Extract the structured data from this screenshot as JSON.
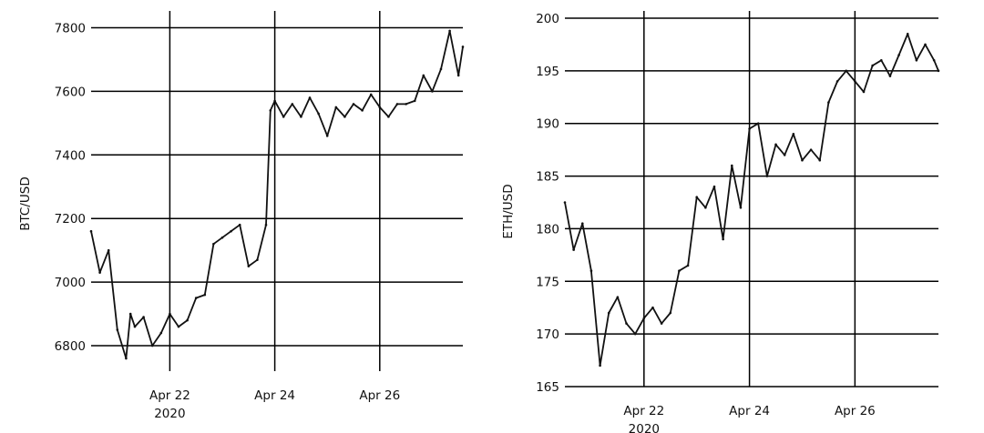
{
  "chart_data": [
    {
      "type": "line",
      "title": "",
      "xlabel": "",
      "ylabel": "BTC/USD",
      "x_ticks": [
        "Apr 22",
        "Apr 24",
        "Apr 26"
      ],
      "x_year_label": "2020",
      "xlim": [
        "2020-04-20T12:00",
        "2020-04-27T14:00"
      ],
      "ylim": [
        6720,
        7830
      ],
      "y_ticks": [
        6800,
        7000,
        7200,
        7400,
        7600,
        7800
      ],
      "grid": true,
      "series": [
        {
          "x": [
            "2020-04-20T12:00",
            "2020-04-20T16:00",
            "2020-04-20T20:00",
            "2020-04-21T00:00",
            "2020-04-21T04:00",
            "2020-04-21T06:00",
            "2020-04-21T08:00",
            "2020-04-21T12:00",
            "2020-04-21T16:00",
            "2020-04-21T20:00",
            "2020-04-22T00:00",
            "2020-04-22T04:00",
            "2020-04-22T08:00",
            "2020-04-22T12:00",
            "2020-04-22T16:00",
            "2020-04-22T20:00",
            "2020-04-23T00:00",
            "2020-04-23T04:00",
            "2020-04-23T08:00",
            "2020-04-23T12:00",
            "2020-04-23T16:00",
            "2020-04-23T20:00",
            "2020-04-23T22:00",
            "2020-04-24T00:00",
            "2020-04-24T04:00",
            "2020-04-24T08:00",
            "2020-04-24T12:00",
            "2020-04-24T16:00",
            "2020-04-24T20:00",
            "2020-04-25T00:00",
            "2020-04-25T04:00",
            "2020-04-25T08:00",
            "2020-04-25T12:00",
            "2020-04-25T16:00",
            "2020-04-25T20:00",
            "2020-04-26T00:00",
            "2020-04-26T04:00",
            "2020-04-26T08:00",
            "2020-04-26T12:00",
            "2020-04-26T16:00",
            "2020-04-26T20:00",
            "2020-04-27T00:00",
            "2020-04-27T04:00",
            "2020-04-27T08:00",
            "2020-04-27T12:00",
            "2020-04-27T14:00"
          ],
          "values": [
            7160,
            7030,
            7100,
            6850,
            6760,
            6900,
            6860,
            6890,
            6800,
            6840,
            6900,
            6860,
            6880,
            6950,
            6960,
            7120,
            7140,
            7160,
            7180,
            7050,
            7070,
            7180,
            7540,
            7570,
            7520,
            7560,
            7520,
            7580,
            7530,
            7460,
            7550,
            7520,
            7560,
            7540,
            7590,
            7550,
            7520,
            7560,
            7560,
            7570,
            7650,
            7600,
            7670,
            7790,
            7650,
            7740
          ]
        }
      ]
    },
    {
      "type": "line",
      "title": "",
      "xlabel": "",
      "ylabel": "ETH/USD",
      "x_ticks": [
        "Apr 22",
        "Apr 24",
        "Apr 26"
      ],
      "x_year_label": "2020",
      "xlim": [
        "2020-04-20T12:00",
        "2020-04-27T14:00"
      ],
      "ylim": [
        165,
        200
      ],
      "y_ticks": [
        165,
        170,
        175,
        180,
        185,
        190,
        195,
        200
      ],
      "grid": true,
      "series": [
        {
          "x": [
            "2020-04-20T12:00",
            "2020-04-20T16:00",
            "2020-04-20T20:00",
            "2020-04-21T00:00",
            "2020-04-21T04:00",
            "2020-04-21T08:00",
            "2020-04-21T12:00",
            "2020-04-21T16:00",
            "2020-04-21T20:00",
            "2020-04-22T00:00",
            "2020-04-22T04:00",
            "2020-04-22T08:00",
            "2020-04-22T12:00",
            "2020-04-22T16:00",
            "2020-04-22T20:00",
            "2020-04-23T00:00",
            "2020-04-23T04:00",
            "2020-04-23T08:00",
            "2020-04-23T12:00",
            "2020-04-23T16:00",
            "2020-04-23T20:00",
            "2020-04-24T00:00",
            "2020-04-24T04:00",
            "2020-04-24T08:00",
            "2020-04-24T12:00",
            "2020-04-24T16:00",
            "2020-04-24T20:00",
            "2020-04-25T00:00",
            "2020-04-25T04:00",
            "2020-04-25T08:00",
            "2020-04-25T12:00",
            "2020-04-25T16:00",
            "2020-04-25T20:00",
            "2020-04-26T00:00",
            "2020-04-26T04:00",
            "2020-04-26T08:00",
            "2020-04-26T12:00",
            "2020-04-26T16:00",
            "2020-04-26T20:00",
            "2020-04-27T00:00",
            "2020-04-27T04:00",
            "2020-04-27T08:00",
            "2020-04-27T12:00",
            "2020-04-27T14:00"
          ],
          "values": [
            182.5,
            178.0,
            180.5,
            176.0,
            167.0,
            172.0,
            173.5,
            171.0,
            170.0,
            171.5,
            172.5,
            171.0,
            172.0,
            176.0,
            176.5,
            183.0,
            182.0,
            184.0,
            179.0,
            186.0,
            182.0,
            189.5,
            190.0,
            185.0,
            188.0,
            187.0,
            189.0,
            186.5,
            187.5,
            186.5,
            192.0,
            194.0,
            195.0,
            194.0,
            193.0,
            195.5,
            196.0,
            194.5,
            196.5,
            198.5,
            196.0,
            197.5,
            196.0,
            195.0
          ]
        }
      ]
    }
  ]
}
